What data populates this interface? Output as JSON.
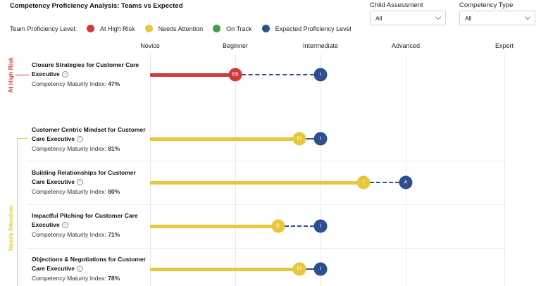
{
  "title": "Competency Proficiency Analysis: Teams vs Expected",
  "filters": {
    "child_assessment": {
      "label": "Child Assessment",
      "value": "All"
    },
    "competency_type": {
      "label": "Competency Type",
      "value": "All"
    }
  },
  "legend": {
    "title": "Team Proficiency Level:",
    "items": [
      {
        "label": "At High Risk",
        "color": "#d13a37"
      },
      {
        "label": "Needs Attention",
        "color": "#e9c73a"
      },
      {
        "label": "On Track",
        "color": "#43a047"
      },
      {
        "label": "Expected Proficiency Level",
        "color": "#2e4f8e"
      }
    ]
  },
  "levels": [
    "Novice",
    "Beginner",
    "Intermediate",
    "Advanced",
    "Expert"
  ],
  "groups": {
    "high_risk": "At High Risk",
    "needs_attention": "Needs Attention"
  },
  "cmi_label": "Competency Maturity Index:",
  "info_glyph": "i",
  "rows": [
    {
      "title": "Closure Strategies for Customer Care Executive",
      "cmi": "47%",
      "status": "high_risk",
      "team_level": 1.0,
      "team_code": "EB",
      "expected_level": 2,
      "expected_code": "I"
    },
    {
      "title": "Customer Centric Mindset for Customer Care Executive",
      "cmi": "81%",
      "status": "needs_attention",
      "team_level": 1.75,
      "team_code": "EI",
      "expected_level": 2,
      "expected_code": "I"
    },
    {
      "title": "Building Relationships for Customer Care Executive",
      "cmi": "80%",
      "status": "needs_attention",
      "team_level": 2.5,
      "team_code": "I",
      "expected_level": 3,
      "expected_code": "A"
    },
    {
      "title": "Impactful Pitching for Customer Care Executive",
      "cmi": "71%",
      "status": "needs_attention",
      "team_level": 1.5,
      "team_code": "B",
      "expected_level": 2,
      "expected_code": "I"
    },
    {
      "title": "Objections & Negotiations for Customer Care Executive",
      "cmi": "78%",
      "status": "needs_attention",
      "team_level": 1.75,
      "team_code": "EI",
      "expected_level": 2,
      "expected_code": "I"
    }
  ]
}
